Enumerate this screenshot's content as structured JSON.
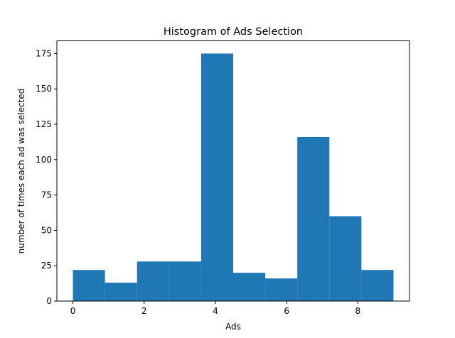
{
  "chart_data": {
    "type": "bar",
    "title": "Histogram of Ads Selection",
    "xlabel": "Ads",
    "ylabel": "number of times each ad was selected",
    "bin_edges": [
      0,
      0.9,
      1.8,
      2.7,
      3.6,
      4.5,
      5.4,
      6.3,
      7.2,
      8.1,
      9
    ],
    "values": [
      22,
      13,
      28,
      28,
      175,
      20,
      16,
      116,
      60,
      22
    ],
    "xlim": [
      -0.45,
      9.45
    ],
    "ylim": [
      0,
      184
    ],
    "xticks": [
      0,
      2,
      4,
      6,
      8
    ],
    "yticks": [
      0,
      25,
      50,
      75,
      100,
      125,
      150,
      175
    ],
    "grid": false,
    "bar_color": "#1f77b4"
  }
}
